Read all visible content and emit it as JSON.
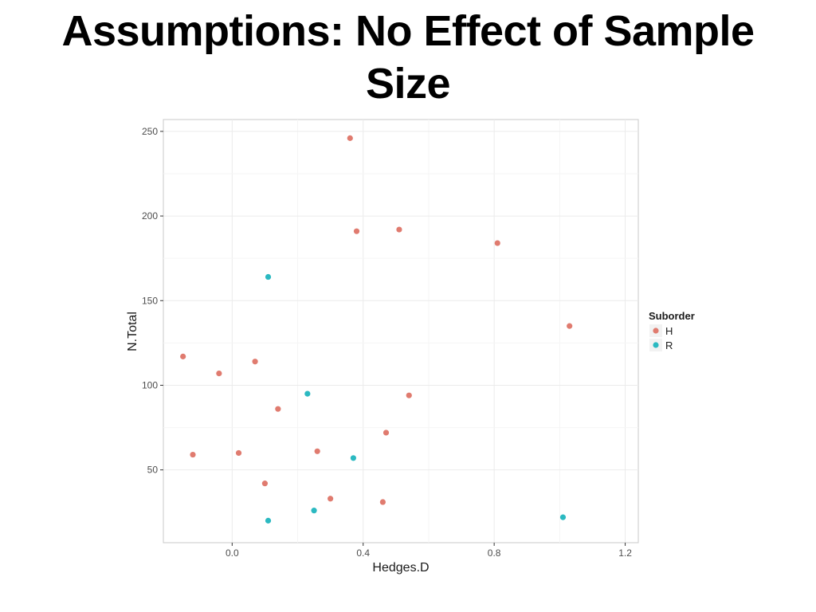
{
  "slide": {
    "title_line1": "Assumptions: No Effect of Sample",
    "title_line2": "Size"
  },
  "colors": {
    "H": "#E07B6F",
    "R": "#2BB9C1"
  },
  "chart_data": {
    "type": "scatter",
    "xlabel": "Hedges.D",
    "ylabel": "N.Total",
    "xlim": [
      -0.21,
      1.24
    ],
    "ylim": [
      7,
      257
    ],
    "xticks": [
      0.0,
      0.4,
      0.8,
      1.2
    ],
    "xtick_labels": [
      "0.0",
      "0.4",
      "0.8",
      "1.2"
    ],
    "yticks": [
      50,
      100,
      150,
      200,
      250
    ],
    "ytick_labels": [
      "50",
      "100",
      "150",
      "200",
      "250"
    ],
    "grid": true,
    "legend": {
      "title": "Suborder",
      "placement": "right"
    },
    "series": [
      {
        "name": "H",
        "color": "#E07B6F",
        "points": [
          {
            "x": 0.36,
            "y": 246
          },
          {
            "x": 0.38,
            "y": 191
          },
          {
            "x": 0.51,
            "y": 192
          },
          {
            "x": 0.81,
            "y": 184
          },
          {
            "x": 1.03,
            "y": 135
          },
          {
            "x": -0.15,
            "y": 117
          },
          {
            "x": -0.04,
            "y": 107
          },
          {
            "x": 0.07,
            "y": 114
          },
          {
            "x": 0.54,
            "y": 94
          },
          {
            "x": 0.14,
            "y": 86
          },
          {
            "x": 0.47,
            "y": 72
          },
          {
            "x": -0.12,
            "y": 59
          },
          {
            "x": 0.02,
            "y": 60
          },
          {
            "x": 0.26,
            "y": 61
          },
          {
            "x": 0.1,
            "y": 42
          },
          {
            "x": 0.3,
            "y": 33
          },
          {
            "x": 0.46,
            "y": 31
          }
        ]
      },
      {
        "name": "R",
        "color": "#2BB9C1",
        "points": [
          {
            "x": 0.11,
            "y": 164
          },
          {
            "x": 0.23,
            "y": 95
          },
          {
            "x": 0.37,
            "y": 57
          },
          {
            "x": 0.25,
            "y": 26
          },
          {
            "x": 0.11,
            "y": 20
          },
          {
            "x": 1.01,
            "y": 22
          }
        ]
      }
    ]
  }
}
